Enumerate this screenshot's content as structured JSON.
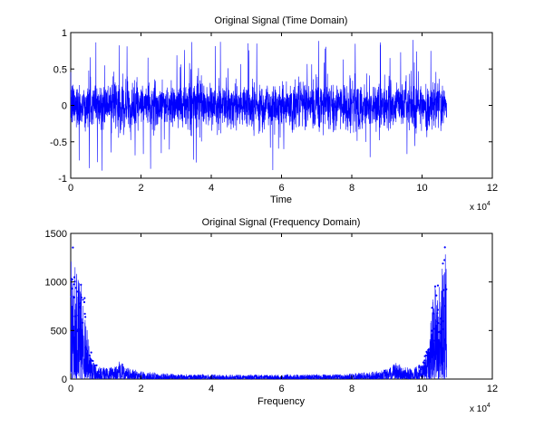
{
  "chart_data": [
    {
      "type": "line",
      "title": "Original Signal (Time Domain)",
      "xlabel": "Time",
      "ylabel": "",
      "x_exponent_label": "x 10",
      "x_exponent": "4",
      "xlim": [
        0,
        12
      ],
      "ylim": [
        -1,
        1
      ],
      "x_ticks": [
        "0",
        "2",
        "4",
        "6",
        "8",
        "10",
        "12"
      ],
      "y_ticks": [
        "-1",
        "-0.5",
        "0",
        "0.5",
        "1"
      ],
      "grid": false,
      "series": [
        {
          "color": "#0000ff",
          "x_range": [
            0,
            10.7
          ],
          "typical_amplitude": 0.3,
          "max": 0.93,
          "min": -0.98
        }
      ]
    },
    {
      "type": "line",
      "title": "Original Signal (Frequency Domain)",
      "xlabel": "Frequency",
      "ylabel": "",
      "x_exponent_label": "x 10",
      "x_exponent": "4",
      "xlim": [
        0,
        12
      ],
      "ylim": [
        0,
        1500
      ],
      "x_ticks": [
        "0",
        "2",
        "4",
        "6",
        "8",
        "10",
        "12"
      ],
      "y_ticks": [
        "0",
        "500",
        "1000",
        "1500"
      ],
      "grid": false,
      "series": [
        {
          "color": "#0000ff",
          "marker": "dot",
          "x_range": [
            0,
            10.7
          ],
          "envelope": {
            "x": [
              0,
              0.05,
              0.1,
              0.2,
              0.3,
              0.4,
              0.5,
              0.7,
              1.0,
              1.3,
              1.4,
              1.6,
              2.0,
              3.0,
              5.35,
              7.7,
              8.7,
              9.1,
              9.3,
              9.4,
              9.7,
              10.0,
              10.2,
              10.3,
              10.4,
              10.5,
              10.6,
              10.65,
              10.7
            ],
            "y": [
              1200,
              1400,
              1200,
              1050,
              1000,
              850,
              400,
              150,
              110,
              140,
              190,
              120,
              80,
              50,
              45,
              50,
              80,
              120,
              190,
              140,
              110,
              150,
              400,
              850,
              1000,
              1050,
              1200,
              1400,
              1200
            ]
          }
        }
      ]
    }
  ]
}
